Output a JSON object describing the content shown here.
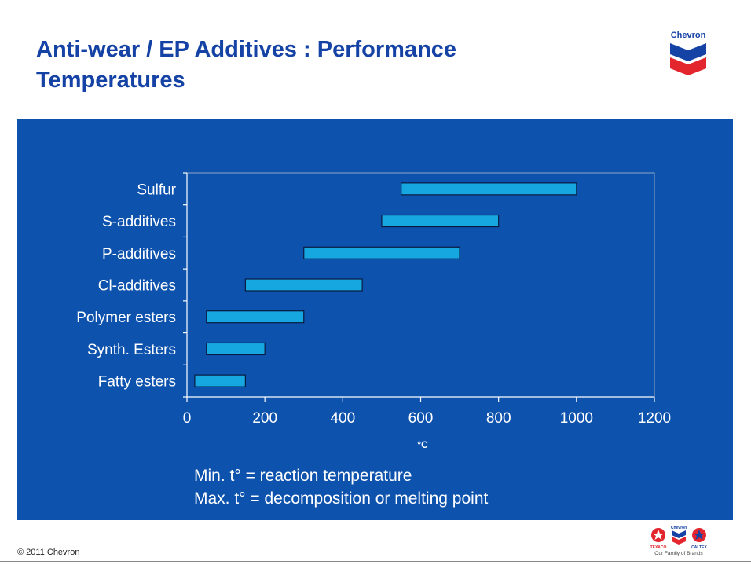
{
  "slide": {
    "title_line1": "Anti-wear / EP Additives : Performance",
    "title_line2": "Temperatures",
    "brand": "Chevron",
    "copyright": "© 2011 Chevron",
    "family_tagline": "Our Family of Brands",
    "family_brands": [
      "TEXACO",
      "Chevron",
      "CALTEX"
    ]
  },
  "notes": [
    "Min. t° = reaction temperature",
    "Max. t° = decomposition or melting point"
  ],
  "colors": {
    "title": "#1542a5",
    "panel": "#0d52ad",
    "bar_fill": "#16a6e0",
    "bar_stroke": "#0a1a40",
    "chevron_blue": "#1542a5",
    "chevron_red": "#e3262e"
  },
  "chart_data": {
    "type": "bar",
    "orientation": "horizontal-range",
    "xlabel": "°C",
    "ylabel": "",
    "xlim": [
      0,
      1200
    ],
    "xticks": [
      0,
      200,
      400,
      600,
      800,
      1000,
      1200
    ],
    "grid": false,
    "categories": [
      "Sulfur",
      "S-additives",
      "P-additives",
      "Cl-additives",
      "Polymer esters",
      "Synth. Esters",
      "Fatty esters"
    ],
    "ranges": [
      {
        "category": "Sulfur",
        "min": 550,
        "max": 1000
      },
      {
        "category": "S-additives",
        "min": 500,
        "max": 800
      },
      {
        "category": "P-additives",
        "min": 300,
        "max": 700
      },
      {
        "category": "Cl-additives",
        "min": 150,
        "max": 450
      },
      {
        "category": "Polymer esters",
        "min": 50,
        "max": 300
      },
      {
        "category": "Synth. Esters",
        "min": 50,
        "max": 200
      },
      {
        "category": "Fatty esters",
        "min": 20,
        "max": 150
      }
    ]
  }
}
